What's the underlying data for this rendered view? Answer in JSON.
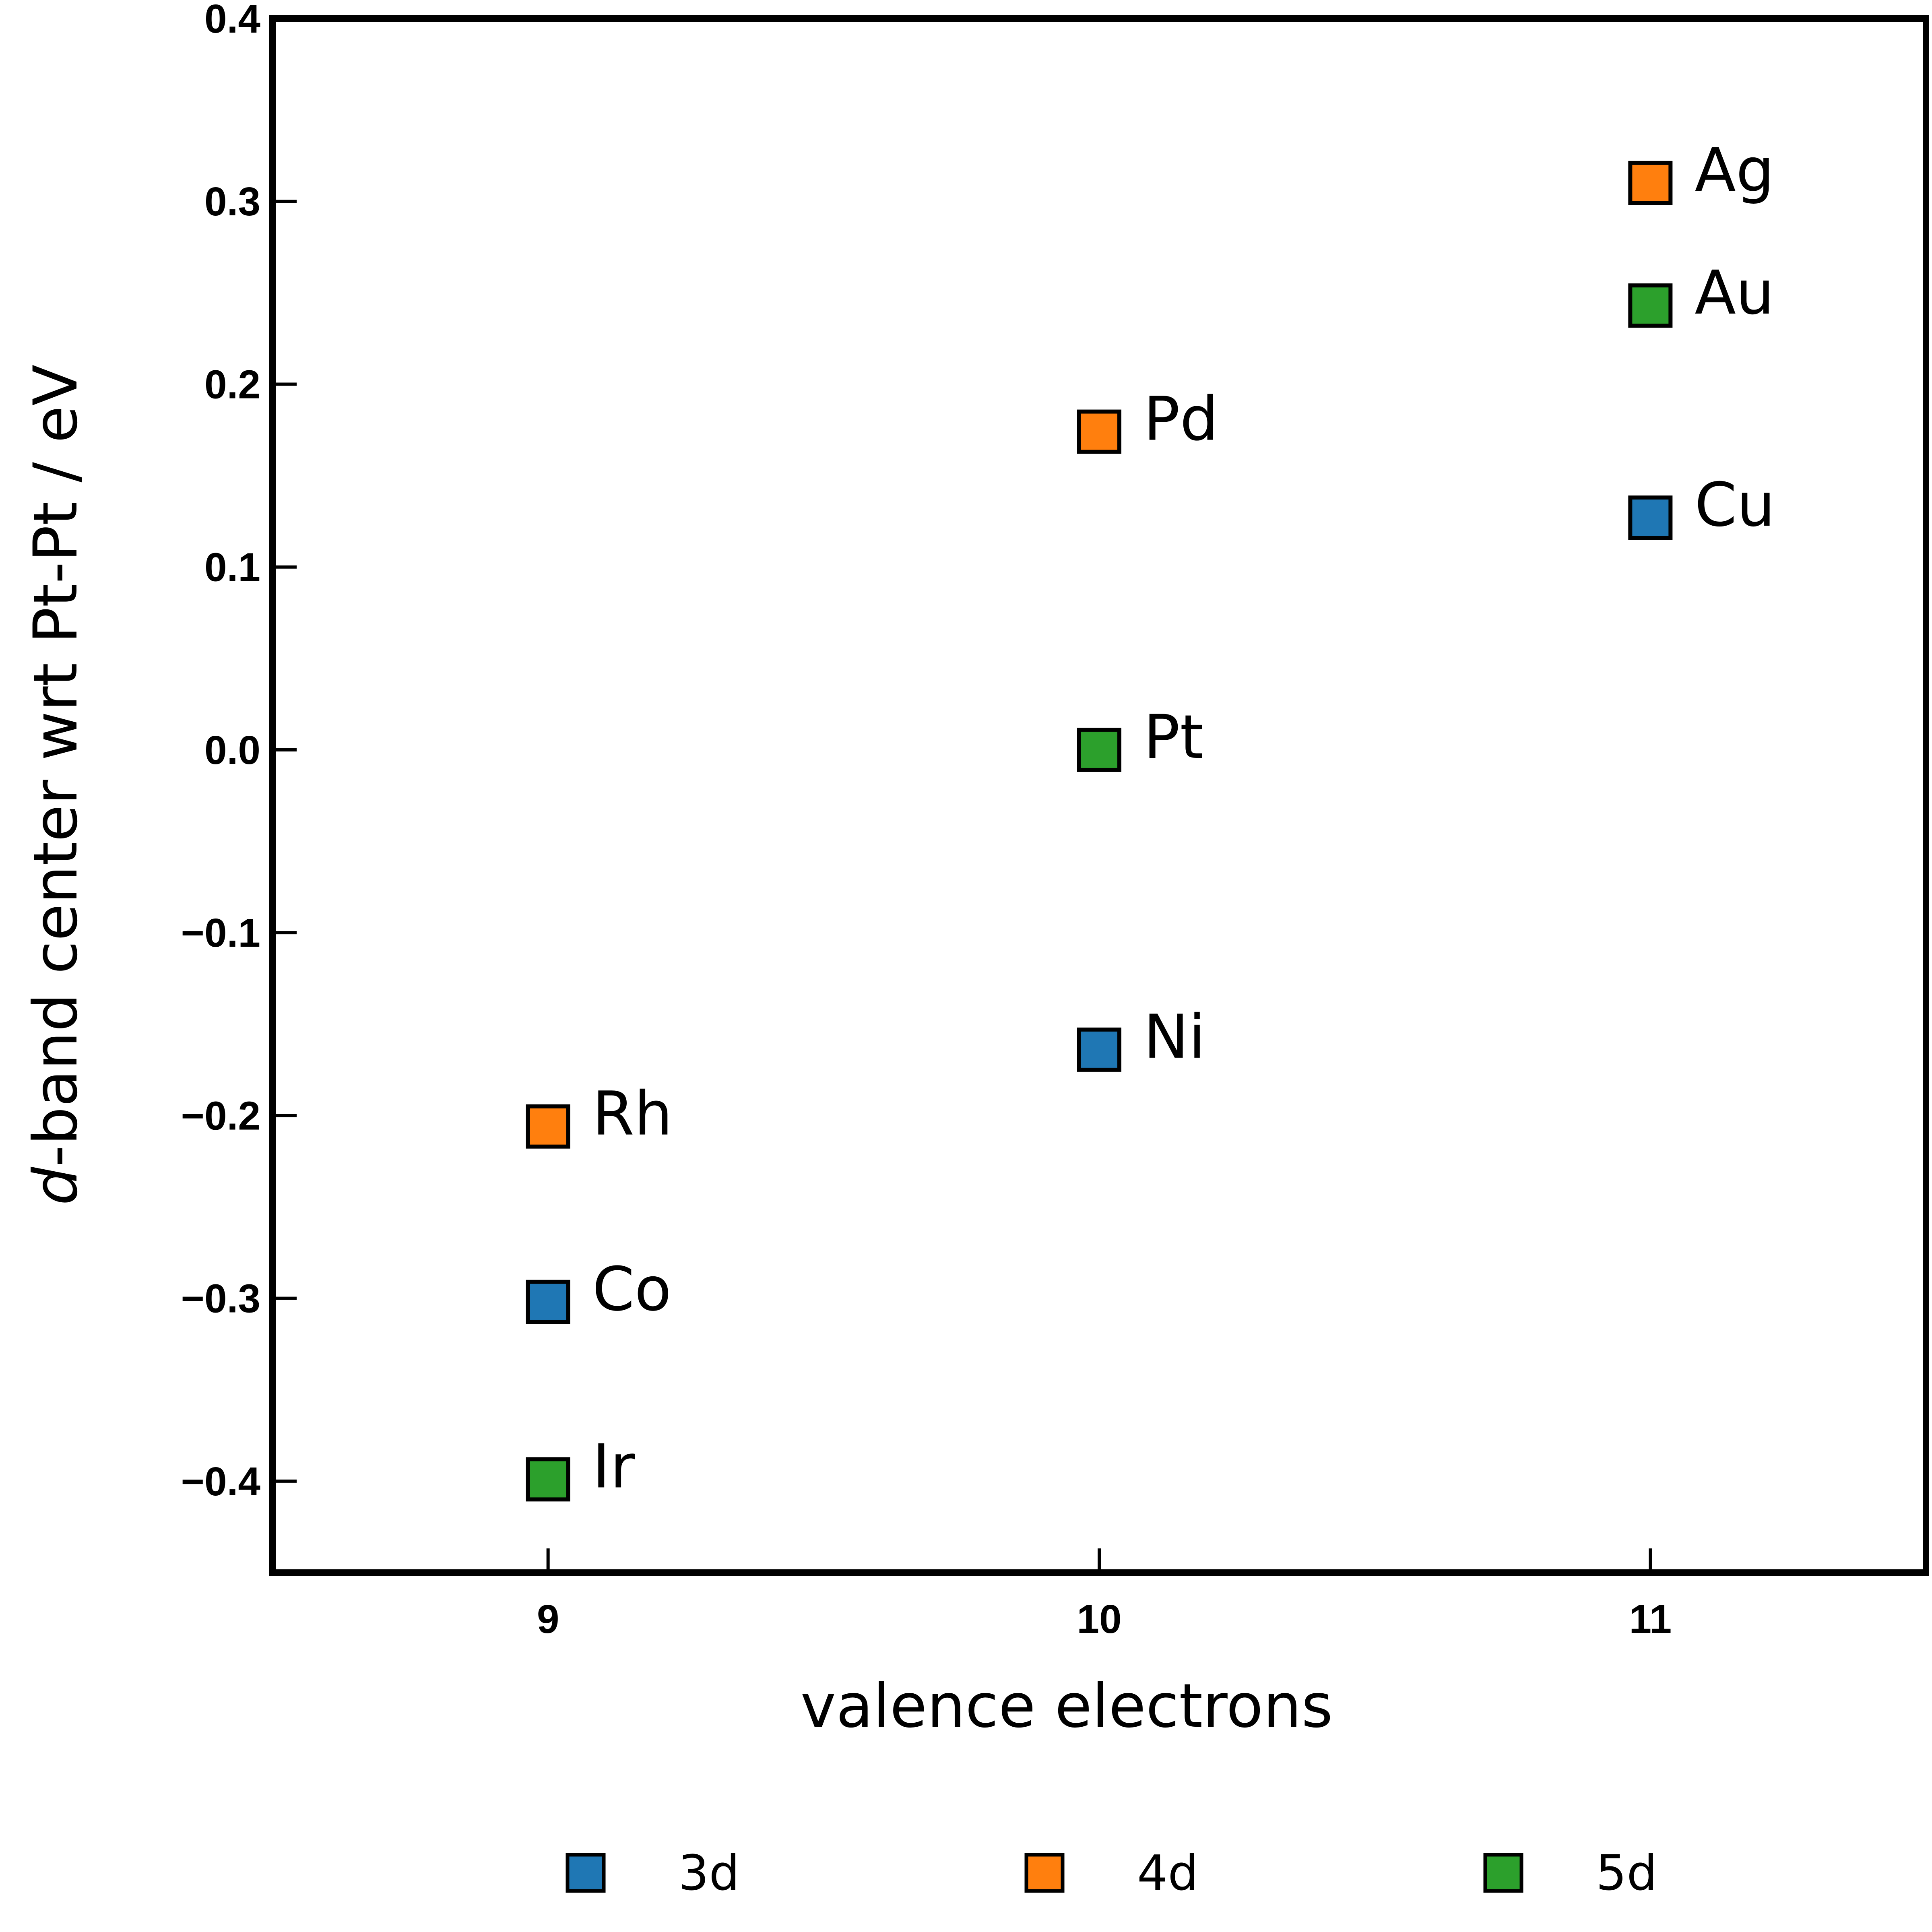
{
  "chart_data": {
    "type": "scatter",
    "xlabel": "valence electrons",
    "ylabel_italic_prefix": "d",
    "ylabel_rest": "-band center wrt Pt-Pt / eV",
    "xlim": [
      8.5,
      11.5
    ],
    "ylim": [
      -0.45,
      0.4
    ],
    "xticks": [
      9,
      10,
      11
    ],
    "xtick_labels": [
      "9",
      "10",
      "11"
    ],
    "yticks": [
      0.4,
      0.3,
      0.2,
      0.1,
      0.0,
      -0.1,
      -0.2,
      -0.3,
      -0.4
    ],
    "ytick_labels": [
      "0.4",
      "0.3",
      "0.2",
      "0.1",
      "0.0",
      "−0.1",
      "−0.2",
      "−0.3",
      "−0.4"
    ],
    "grid": false,
    "legend_position": "bottom",
    "series": [
      {
        "name": "3d",
        "color": "#1f77b4",
        "points": [
          {
            "label": "Co",
            "x": 9,
            "y": -0.302
          },
          {
            "label": "Ni",
            "x": 10,
            "y": -0.164
          },
          {
            "label": "Cu",
            "x": 11,
            "y": 0.127
          }
        ]
      },
      {
        "name": "4d",
        "color": "#ff7f0e",
        "points": [
          {
            "label": "Rh",
            "x": 9,
            "y": -0.206
          },
          {
            "label": "Pd",
            "x": 10,
            "y": 0.174
          },
          {
            "label": "Ag",
            "x": 11,
            "y": 0.31
          }
        ]
      },
      {
        "name": "5d",
        "color": "#2ca02c",
        "points": [
          {
            "label": "Ir",
            "x": 9,
            "y": -0.399
          },
          {
            "label": "Pt",
            "x": 10,
            "y": 0.0
          },
          {
            "label": "Au",
            "x": 11,
            "y": 0.243
          }
        ]
      }
    ]
  }
}
